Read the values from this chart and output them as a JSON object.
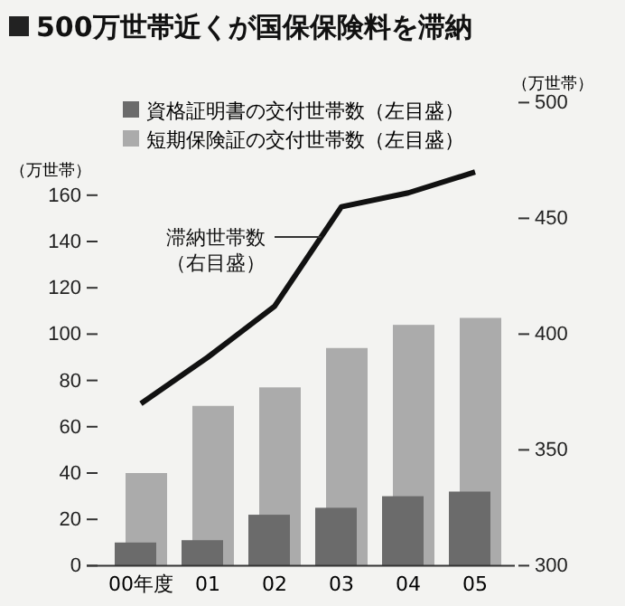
{
  "chart_data": {
    "type": "bar",
    "title": "500万世帯近くが国保保険料を滞納",
    "categories": [
      "00年度",
      "01",
      "02",
      "03",
      "04",
      "05"
    ],
    "series": [
      {
        "name": "短期保険証の交付世帯数（左目盛）",
        "color": "#ababab",
        "values": [
          40,
          69,
          77,
          94,
          104,
          107
        ]
      },
      {
        "name": "資格証明書の交付世帯数（左目盛）",
        "color": "#6b6b6b",
        "values": [
          10,
          11,
          22,
          25,
          30,
          32
        ]
      },
      {
        "name": "滞納世帯数（右目盛）",
        "type": "line",
        "axis": "y2",
        "color": "#111111",
        "values": [
          370,
          390,
          412,
          455,
          461,
          470
        ]
      }
    ],
    "ylabel": "（万世帯）",
    "y2label": "（万世帯）",
    "ylim": [
      0,
      200
    ],
    "yticks": [
      0,
      20,
      40,
      60,
      80,
      100,
      120,
      140,
      160
    ],
    "y2lim": [
      300,
      500
    ],
    "y2ticks": [
      300,
      350,
      400,
      450,
      500
    ],
    "legend": "top",
    "grid": false,
    "marker": "none",
    "line_style": "solid"
  }
}
